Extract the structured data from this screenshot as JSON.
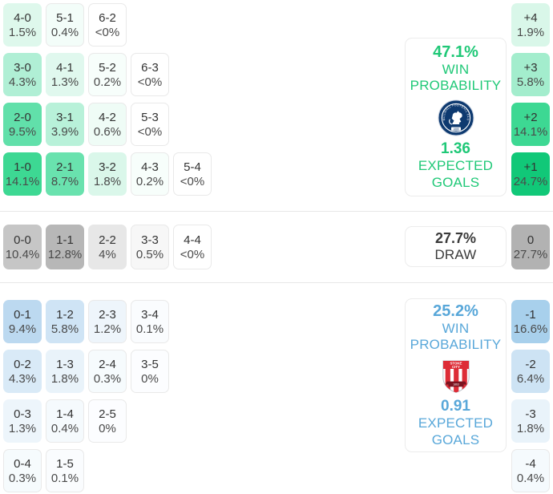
{
  "chart_data": {
    "type": "heatmap",
    "title": "Correct score probability matrix with win probability and expected goals",
    "legend_position": "right",
    "home": {
      "panel": {
        "win_pct": "47.1%",
        "win_word1": "WIN",
        "win_word2": "PROBABILITY",
        "xg": "1.36",
        "xg_word1": "EXPECTED",
        "xg_word2": "GOALS",
        "team_icon": "millwall-crest",
        "accent": "#1fc877"
      },
      "rows": [
        [
          {
            "score": "4-0",
            "pct": "1.5%",
            "bg": "#def8ec"
          },
          {
            "score": "5-1",
            "pct": "0.4%",
            "bg": "#f3fdf9"
          },
          {
            "score": "6-2",
            "pct": "<0%",
            "bg": "#ffffff"
          }
        ],
        [
          {
            "score": "3-0",
            "pct": "4.3%",
            "bg": "#b0efd5"
          },
          {
            "score": "4-1",
            "pct": "1.3%",
            "bg": "#e0f8ee"
          },
          {
            "score": "5-2",
            "pct": "0.2%",
            "bg": "#f7fefb"
          },
          {
            "score": "6-3",
            "pct": "<0%",
            "bg": "#ffffff"
          }
        ],
        [
          {
            "score": "2-0",
            "pct": "9.5%",
            "bg": "#61e0aa"
          },
          {
            "score": "3-1",
            "pct": "3.9%",
            "bg": "#b8f1d9"
          },
          {
            "score": "4-2",
            "pct": "0.6%",
            "bg": "#effcf6"
          },
          {
            "score": "5-3",
            "pct": "<0%",
            "bg": "#ffffff"
          }
        ],
        [
          {
            "score": "1-0",
            "pct": "14.1%",
            "bg": "#3dd893"
          },
          {
            "score": "2-1",
            "pct": "8.7%",
            "bg": "#69e2ae"
          },
          {
            "score": "3-2",
            "pct": "1.8%",
            "bg": "#daf7ea"
          },
          {
            "score": "4-3",
            "pct": "0.2%",
            "bg": "#f7fefb"
          },
          {
            "score": "5-4",
            "pct": "<0%",
            "bg": "#ffffff"
          }
        ]
      ],
      "diffs": [
        {
          "score": "+4",
          "pct": "1.9%",
          "bg": "#d9f7e9"
        },
        {
          "score": "+3",
          "pct": "5.8%",
          "bg": "#a3edcd"
        },
        {
          "score": "+2",
          "pct": "14.1%",
          "bg": "#3dd893"
        },
        {
          "score": "+1",
          "pct": "24.7%",
          "bg": "#11c878"
        }
      ]
    },
    "draw": {
      "panel": {
        "pct": "27.7%",
        "label": "DRAW"
      },
      "rows": [
        [
          {
            "score": "0-0",
            "pct": "10.4%",
            "bg": "#c6c6c6"
          },
          {
            "score": "1-1",
            "pct": "12.8%",
            "bg": "#b7b7b7"
          },
          {
            "score": "2-2",
            "pct": "4%",
            "bg": "#e7e7e7"
          },
          {
            "score": "3-3",
            "pct": "0.5%",
            "bg": "#f7f7f7"
          },
          {
            "score": "4-4",
            "pct": "<0%",
            "bg": "#ffffff"
          }
        ]
      ],
      "diffs": [
        {
          "score": "0",
          "pct": "27.7%",
          "bg": "#b2b2b2"
        }
      ]
    },
    "away": {
      "panel": {
        "win_pct": "25.2%",
        "win_word1": "WIN",
        "win_word2": "PROBABILITY",
        "xg": "0.91",
        "xg_word1": "EXPECTED",
        "xg_word2": "GOALS",
        "team_icon": "stoke-city-crest",
        "accent": "#58a7d9"
      },
      "rows": [
        [
          {
            "score": "0-1",
            "pct": "9.4%",
            "bg": "#bcd9f0"
          },
          {
            "score": "1-2",
            "pct": "5.8%",
            "bg": "#cfe4f5"
          },
          {
            "score": "2-3",
            "pct": "1.2%",
            "bg": "#eef5fb"
          },
          {
            "score": "3-4",
            "pct": "0.1%",
            "bg": "#fafcfe"
          }
        ],
        [
          {
            "score": "0-2",
            "pct": "4.3%",
            "bg": "#d9eaf7"
          },
          {
            "score": "1-3",
            "pct": "1.8%",
            "bg": "#e9f3fa"
          },
          {
            "score": "2-4",
            "pct": "0.3%",
            "bg": "#f6fbfd"
          },
          {
            "score": "3-5",
            "pct": "0%",
            "bg": "#fcfdff"
          }
        ],
        [
          {
            "score": "0-3",
            "pct": "1.3%",
            "bg": "#edf5fb"
          },
          {
            "score": "1-4",
            "pct": "0.4%",
            "bg": "#f5fafd"
          },
          {
            "score": "2-5",
            "pct": "0%",
            "bg": "#fcfdff"
          }
        ],
        [
          {
            "score": "0-4",
            "pct": "0.3%",
            "bg": "#f6fbfd"
          },
          {
            "score": "1-5",
            "pct": "0.1%",
            "bg": "#fafcfe"
          }
        ]
      ],
      "diffs": [
        {
          "score": "-1",
          "pct": "16.6%",
          "bg": "#a8d0ec"
        },
        {
          "score": "-2",
          "pct": "6.4%",
          "bg": "#cde3f4"
        },
        {
          "score": "-3",
          "pct": "1.8%",
          "bg": "#e9f3fa"
        },
        {
          "score": "-4",
          "pct": "0.4%",
          "bg": "#f5fafd"
        }
      ]
    }
  }
}
